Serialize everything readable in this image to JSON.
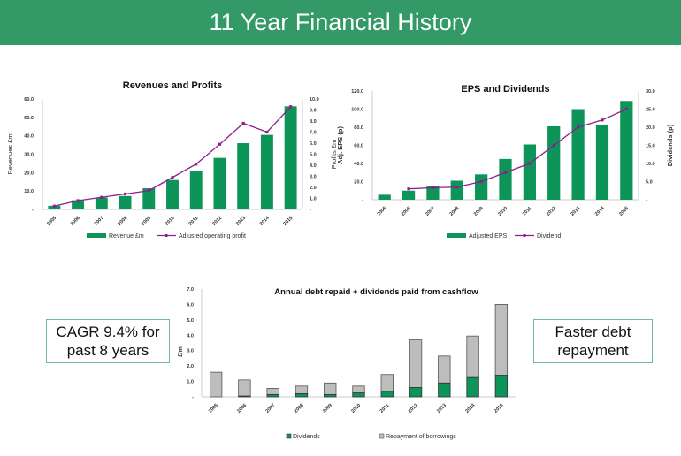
{
  "header": {
    "title": "11 Year Financial History"
  },
  "callouts": {
    "left": "CAGR 9.4% for past 8 years",
    "right": "Faster debt repayment"
  },
  "colors": {
    "header_bg": "#339966",
    "bar_green": "#0d9458",
    "line_purple": "#8b1f8f",
    "bar_grey": "#bdbdbd",
    "callout_border": "#6fb9a0"
  },
  "chart_data": [
    {
      "id": "revenues",
      "type": "bar",
      "title": "Revenues and Profits",
      "categories": [
        "2005",
        "2006",
        "2007",
        "2008",
        "2009",
        "2010",
        "2011",
        "2012",
        "2013",
        "2014",
        "2015"
      ],
      "series": [
        {
          "name": "Revenue £m",
          "type": "bar",
          "axis": "left",
          "values": [
            2.0,
            5.0,
            6.5,
            7.3,
            11.5,
            16.0,
            21.0,
            28.0,
            36.0,
            40.5,
            56.0
          ]
        },
        {
          "name": "Adjusted operating profit",
          "type": "line",
          "axis": "right",
          "values": [
            0.3,
            0.8,
            1.1,
            1.4,
            1.7,
            2.9,
            4.1,
            5.9,
            7.8,
            7.0,
            9.3
          ]
        }
      ],
      "ylabel": "Revenues £m",
      "y2label": "Profits £m",
      "ylim": [
        0,
        60
      ],
      "y2lim": [
        0,
        10
      ],
      "yticks": [
        "-",
        "10.0",
        "20.0",
        "30.0",
        "40.0",
        "50.0",
        "60.0"
      ],
      "y2ticks": [
        "-",
        "1.0",
        "2.0",
        "3.0",
        "4.0",
        "5.0",
        "6.0",
        "7.0",
        "8.0",
        "9.0",
        "10.0"
      ],
      "legend_position": "bottom"
    },
    {
      "id": "eps",
      "type": "bar",
      "title": "EPS and Dividends",
      "categories": [
        "2005",
        "2006",
        "2007",
        "2008",
        "2009",
        "2010",
        "2011",
        "2012",
        "2013",
        "2014",
        "2015"
      ],
      "series": [
        {
          "name": "Adjusted EPS",
          "type": "bar",
          "axis": "left",
          "values": [
            5.5,
            10.0,
            15.0,
            21.0,
            28.0,
            45.0,
            61.0,
            81.0,
            100.0,
            83.0,
            109.0
          ]
        },
        {
          "name": "Dividend",
          "type": "line",
          "axis": "right",
          "values": [
            null,
            3.0,
            3.3,
            3.5,
            5.0,
            7.5,
            10.0,
            15.0,
            20.0,
            22.0,
            25.0
          ]
        }
      ],
      "ylabel": "Adj. EPS (p)",
      "y2label": "Dividends (p)",
      "ylim": [
        0,
        120
      ],
      "y2lim": [
        0,
        30
      ],
      "yticks": [
        "-",
        "20.0",
        "40.0",
        "60.0",
        "80.0",
        "100.0",
        "120.0"
      ],
      "y2ticks": [
        "-",
        "5.0",
        "10.0",
        "15.0",
        "20.0",
        "25.0",
        "30.0"
      ],
      "legend_position": "bottom"
    },
    {
      "id": "debt",
      "type": "bar",
      "stacked": true,
      "title": "Annual debt repaid + dividends paid from cashflow",
      "categories": [
        "2005",
        "2006",
        "2007",
        "2008",
        "2009",
        "2010",
        "2011",
        "2012",
        "2013",
        "2014",
        "2015"
      ],
      "series": [
        {
          "name": "Dividends",
          "values": [
            0.0,
            0.05,
            0.15,
            0.2,
            0.15,
            0.25,
            0.35,
            0.6,
            0.9,
            1.25,
            1.4
          ]
        },
        {
          "name": "Repayment of borrowings",
          "values": [
            1.6,
            1.05,
            0.4,
            0.5,
            0.75,
            0.45,
            1.1,
            3.1,
            1.75,
            2.7,
            4.6
          ]
        }
      ],
      "ylabel": "£'m",
      "ylim": [
        0,
        7
      ],
      "yticks": [
        "-",
        "1.0",
        "2.0",
        "3.0",
        "4.0",
        "5.0",
        "6.0",
        "7.0"
      ],
      "legend_position": "bottom"
    }
  ]
}
